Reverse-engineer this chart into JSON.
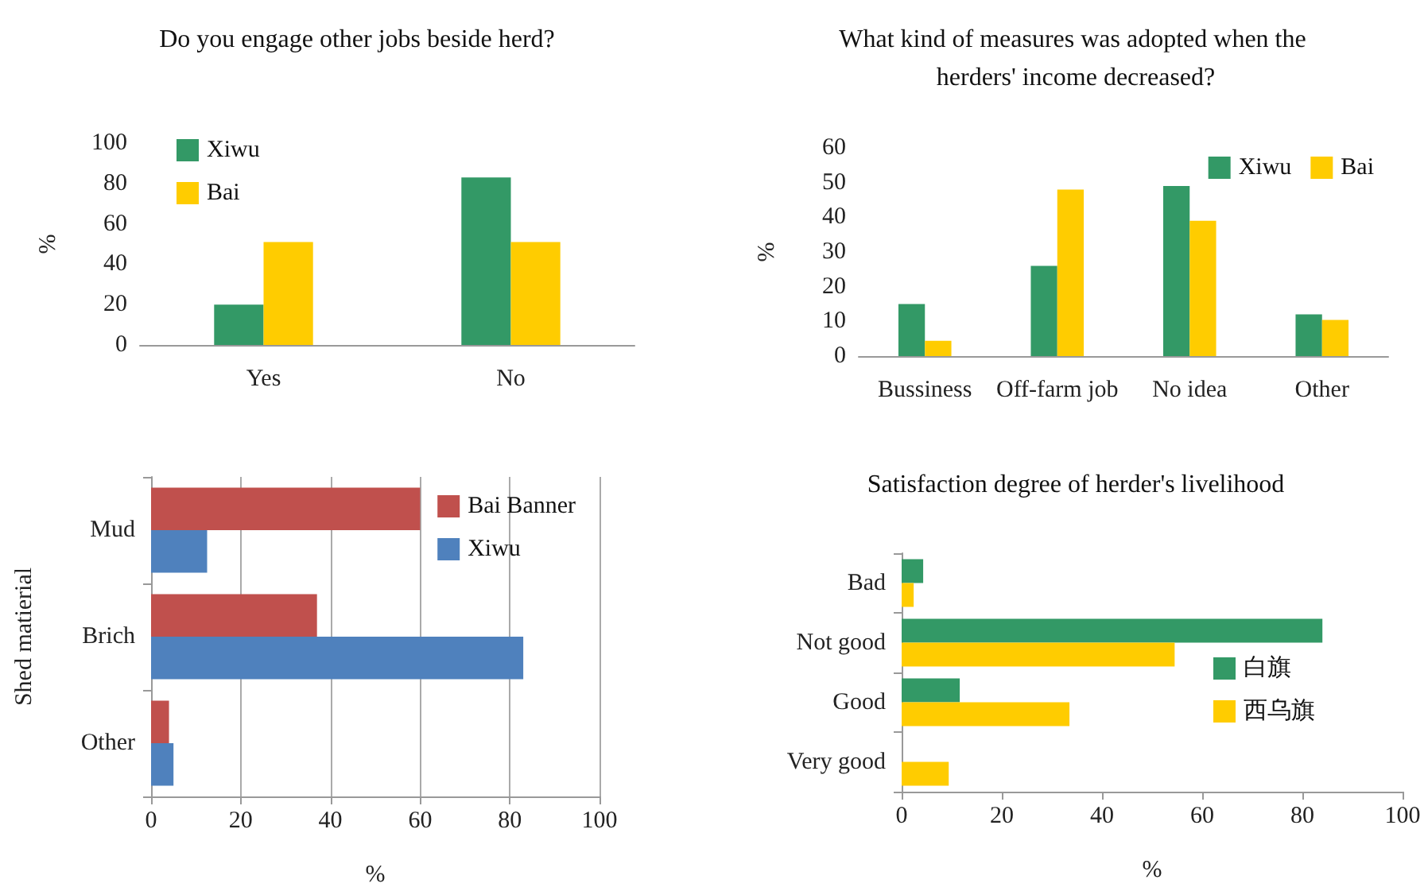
{
  "chart_data": [
    {
      "type": "bar",
      "title": "Do you engage other jobs beside herd?",
      "ylabel": "%",
      "categories": [
        "Yes",
        "No"
      ],
      "series": [
        {
          "name": "Xiwu",
          "color": "#339966",
          "values": [
            20,
            83
          ]
        },
        {
          "name": "Bai",
          "color": "#ffcc00",
          "values": [
            51,
            51
          ]
        }
      ],
      "ylim": [
        0,
        100
      ],
      "yticks": [
        0,
        20,
        40,
        60,
        80,
        100
      ],
      "grid": false,
      "legend": "top left"
    },
    {
      "type": "bar",
      "title": "What kind of measures was adopted when the herders' income decreased?",
      "ylabel": "%",
      "categories": [
        "Bussiness",
        "Off-farm job",
        "No idea",
        "Other"
      ],
      "series": [
        {
          "name": "Xiwu",
          "color": "#339966",
          "values": [
            15,
            26,
            49,
            12
          ]
        },
        {
          "name": "Bai",
          "color": "#ffcc00",
          "values": [
            4.4,
            48,
            39,
            10.4
          ]
        }
      ],
      "ylim": [
        0,
        60
      ],
      "yticks": [
        0,
        10,
        20,
        30,
        40,
        50,
        60
      ],
      "grid": false,
      "legend": "top right"
    },
    {
      "type": "bar",
      "orientation": "horizontal",
      "xlabel": "%",
      "ylabel": "Shed matierial",
      "categories": [
        "Mud",
        "Brich",
        "Other"
      ],
      "series": [
        {
          "name": "Bai Banner",
          "color": "#c0504d",
          "values": [
            60,
            37,
            4
          ]
        },
        {
          "name": "Xiwu",
          "color": "#4f81bd",
          "values": [
            12.5,
            83,
            5
          ]
        }
      ],
      "xlim": [
        0,
        100
      ],
      "xticks": [
        0,
        20,
        40,
        60,
        80,
        100
      ],
      "grid": "x",
      "legend": "top right"
    },
    {
      "type": "bar",
      "orientation": "horizontal",
      "title": "Satisfaction degree of herder's livelihood",
      "xlabel": "%",
      "categories": [
        "Bad",
        "Not good",
        "Good",
        "Very good"
      ],
      "series": [
        {
          "name": "白旗",
          "color": "#339966",
          "values": [
            4.3,
            84,
            11.6,
            0
          ]
        },
        {
          "name": "西乌旗",
          "color": "#ffcc00",
          "values": [
            2.4,
            54.5,
            33.5,
            9.4
          ]
        }
      ],
      "xlim": [
        0,
        100
      ],
      "xticks": [
        0,
        20,
        40,
        60,
        80,
        100
      ],
      "grid": false,
      "legend": "right"
    }
  ]
}
